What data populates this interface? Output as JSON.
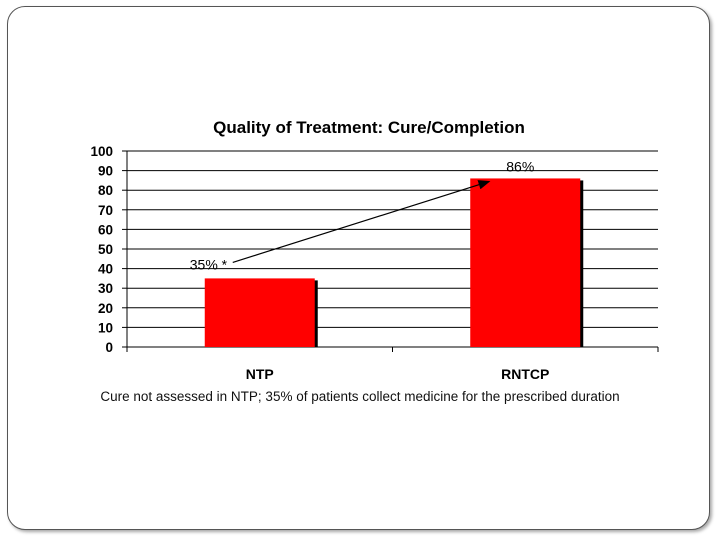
{
  "chart_data": {
    "type": "bar",
    "title": "Quality of Treatment: Cure/Completion",
    "categories": [
      "NTP",
      "RNTCP"
    ],
    "values": [
      35,
      86
    ],
    "data_labels": [
      "35% *",
      "86%"
    ],
    "ylim": [
      0,
      100
    ],
    "yticks": [
      "0",
      "10",
      "20",
      "30",
      "40",
      "50",
      "60",
      "70",
      "80",
      "90",
      "100"
    ],
    "grid": true,
    "bar_color": "#ff0000",
    "footnote": "Cure not assessed in NTP; 35% of patients collect medicine for the prescribed duration"
  }
}
